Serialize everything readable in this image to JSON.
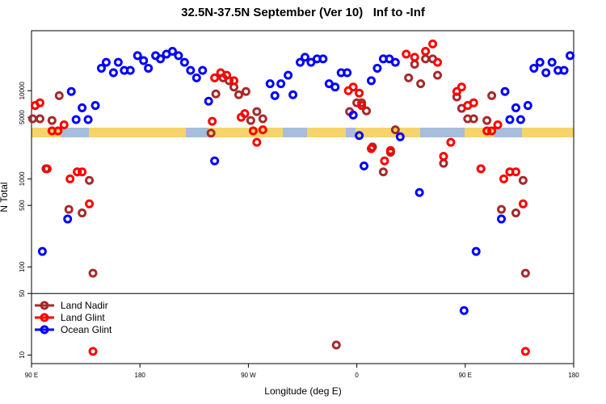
{
  "chart_data": {
    "type": "scatter",
    "title": "32.5N-37.5N September (Ver 10)   Inf to -Inf",
    "xlabel": "Longitude (deg E)",
    "ylabel": "N Total",
    "log_y": true,
    "xlim": [
      90,
      540
    ],
    "ylim": [
      8,
      48000
    ],
    "xticks": [
      {
        "value": 90,
        "label": "90 E"
      },
      180,
      {
        "value": 270,
        "label": "90 W"
      },
      {
        "value": 360,
        "label": "0"
      },
      {
        "value": 450,
        "label": "90 E"
      },
      {
        "value": 540,
        "label": "180"
      }
    ],
    "yticks": [
      10,
      50,
      100,
      500,
      1000,
      5000,
      10000
    ],
    "hline": 50,
    "legend": "lower left",
    "series": [
      {
        "name": "Land Nadir",
        "color": "#a52a2a",
        "x": [
          91,
          97,
          102,
          107,
          113,
          121,
          128,
          132,
          138,
          141,
          239,
          243,
          249,
          254,
          258,
          262,
          268,
          272,
          277,
          282,
          343,
          354,
          360,
          364,
          368,
          373,
          382,
          388,
          392,
          403,
          408,
          413,
          417,
          423,
          427,
          432,
          443,
          447,
          452,
          457,
          463,
          468,
          472,
          480,
          487,
          492,
          498,
          500
        ],
        "values": [
          4800,
          4800,
          1300,
          4600,
          8800,
          450,
          1200,
          410,
          960,
          85,
          3300,
          9200,
          14000,
          13000,
          11000,
          9000,
          9800,
          4600,
          5800,
          4800,
          13,
          5800,
          7300,
          7300,
          5900,
          2300,
          1200,
          2000,
          3600,
          14000,
          20000,
          12000,
          23000,
          23000,
          15000,
          1500,
          8500,
          6300,
          4800,
          4800,
          1300,
          4600,
          8800,
          450,
          1200,
          410,
          960,
          85
        ]
      },
      {
        "name": "Land Glint",
        "color": "#ff0000",
        "x": [
          93,
          97,
          103,
          107,
          112,
          117,
          122,
          128,
          132,
          138,
          141,
          240,
          242,
          247,
          252,
          258,
          264,
          267,
          274,
          277,
          282,
          353,
          357,
          362,
          364,
          372,
          383,
          388,
          401,
          408,
          417,
          423,
          427,
          432,
          438,
          443,
          447,
          452,
          457,
          463,
          468,
          472,
          477,
          482,
          487,
          492,
          498,
          500
        ],
        "values": [
          6800,
          7300,
          1300,
          3500,
          3500,
          4100,
          1000,
          1200,
          1200,
          520,
          11,
          4500,
          14000,
          16000,
          15000,
          13000,
          5000,
          5500,
          3500,
          2600,
          3600,
          10000,
          11000,
          9400,
          6800,
          2200,
          1600,
          2100,
          26000,
          24000,
          28000,
          34000,
          21000,
          1800,
          2600,
          9800,
          11000,
          6800,
          7300,
          1300,
          3500,
          3500,
          4100,
          1000,
          1200,
          1200,
          520,
          11
        ]
      },
      {
        "name": "Ocean Glint",
        "color": "#0000ff",
        "x": [
          99,
          123,
          120,
          127,
          132,
          137,
          143,
          148,
          152,
          158,
          162,
          167,
          172,
          178,
          183,
          187,
          193,
          197,
          202,
          207,
          212,
          217,
          222,
          227,
          232,
          237,
          242,
          288,
          292,
          297,
          303,
          307,
          313,
          317,
          322,
          327,
          332,
          337,
          342,
          347,
          352,
          357,
          362,
          366,
          372,
          377,
          382,
          387,
          392,
          396,
          412,
          449,
          459,
          480,
          483,
          487,
          492,
          496,
          502,
          507,
          512,
          517,
          522,
          527,
          532,
          537
        ],
        "values": [
          150,
          9800,
          350,
          4700,
          6400,
          4700,
          6800,
          18000,
          21000,
          16000,
          21000,
          17000,
          17000,
          25000,
          22000,
          18000,
          25000,
          23000,
          26000,
          28000,
          25000,
          21000,
          17000,
          14000,
          17000,
          7600,
          1600,
          12000,
          8800,
          12000,
          15000,
          9000,
          21000,
          24000,
          21000,
          23000,
          23000,
          12000,
          11000,
          16000,
          16000,
          5300,
          3100,
          1400,
          13000,
          18000,
          23000,
          23000,
          21000,
          3000,
          700,
          32,
          150,
          350,
          9800,
          4700,
          6400,
          4700,
          6800,
          18000,
          21000,
          16000,
          21000,
          17000,
          17000,
          25000
        ]
      }
    ]
  }
}
